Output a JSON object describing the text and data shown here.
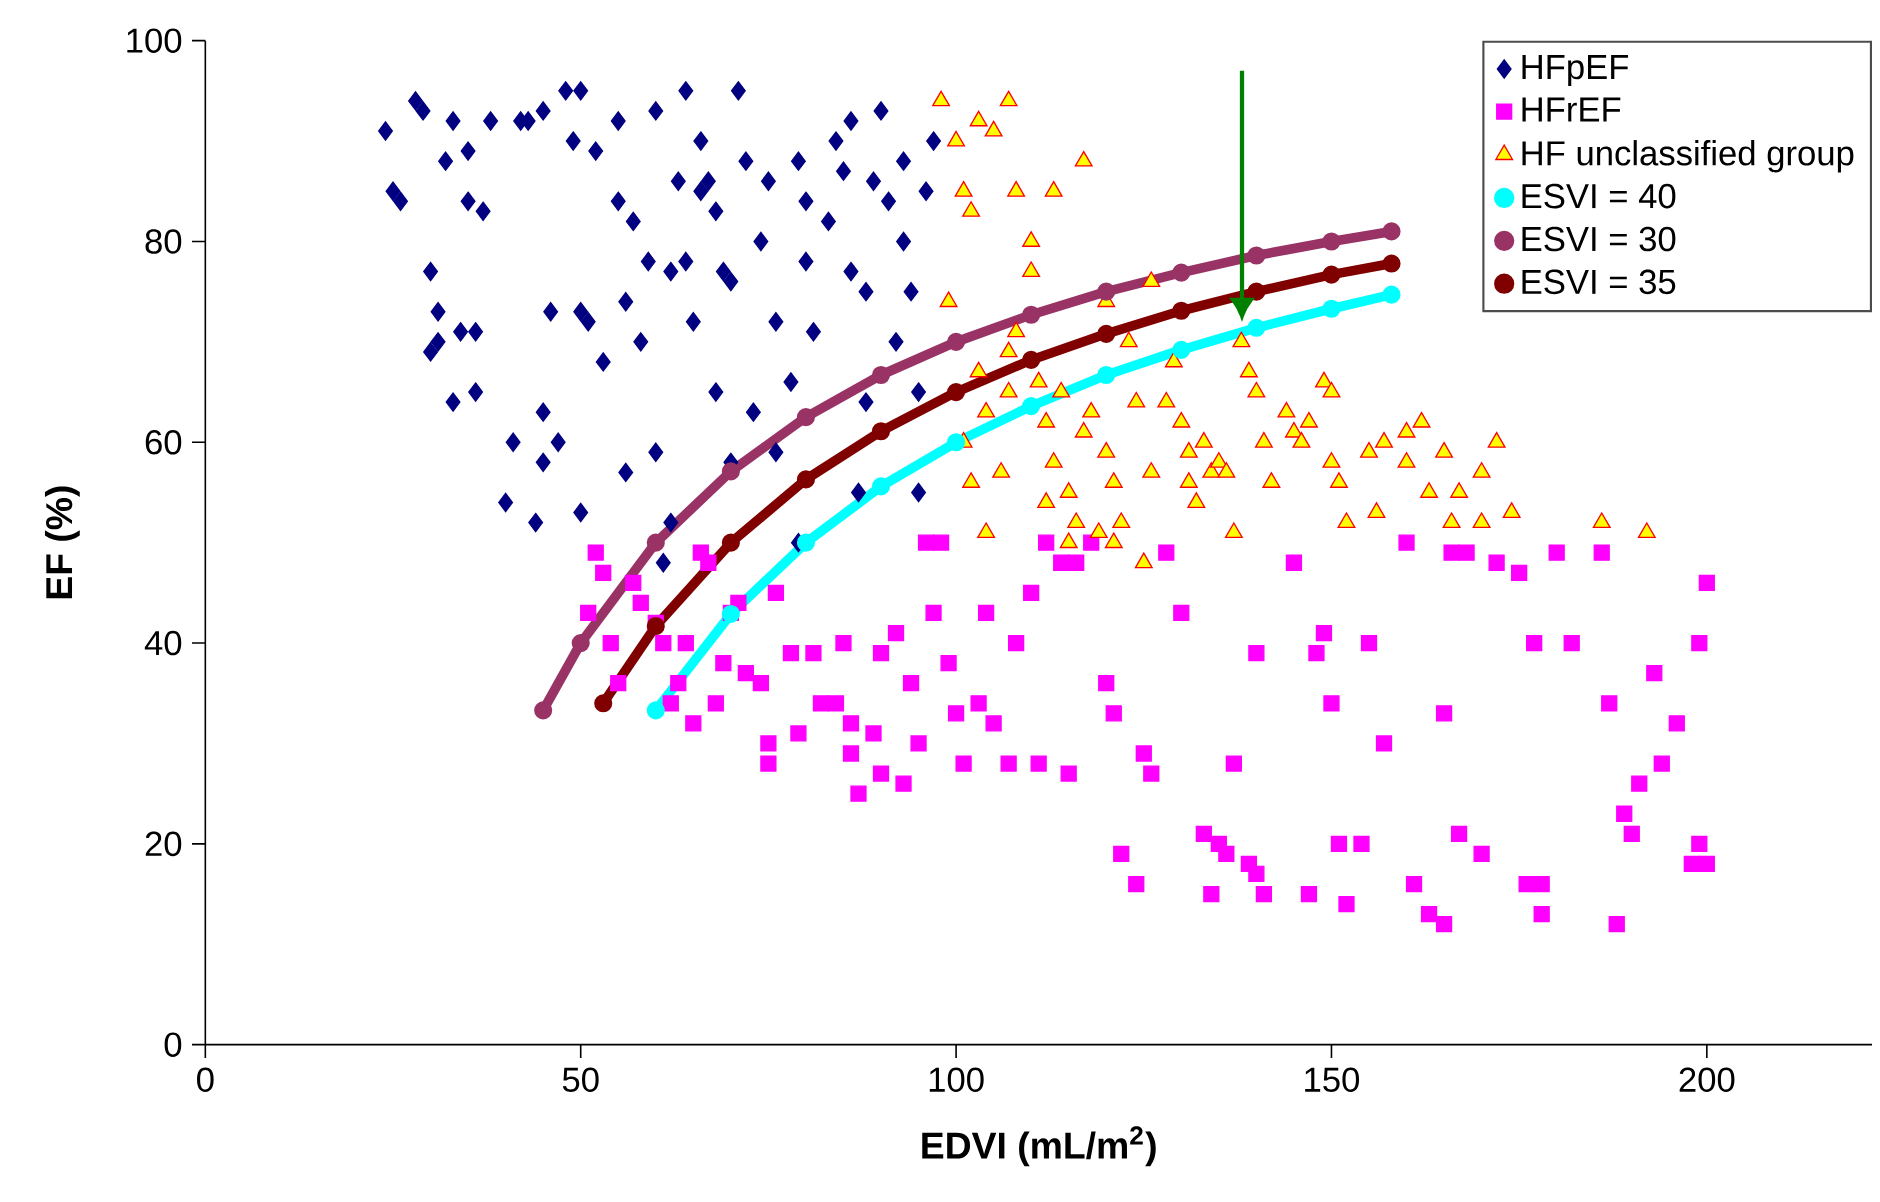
{
  "chart_data": {
    "type": "scatter",
    "xlabel": "EDVI (mL/m$^{2}$)",
    "ylabel": "EF (%)",
    "xlim": [
      0,
      222
    ],
    "xticks": [
      0,
      50,
      100,
      150,
      200
    ],
    "ylim": [
      0,
      100
    ],
    "yticks": [
      0,
      20,
      40,
      60,
      80,
      100
    ],
    "grid": false,
    "legend": "top right",
    "series": [
      {
        "name": "HFpEF",
        "color": "#000080",
        "marker": "diamond",
        "x": [
          24,
          25,
          26,
          28,
          29,
          30,
          31,
          31,
          30,
          32,
          33,
          35,
          35,
          34,
          36,
          36,
          33,
          37,
          38,
          40,
          42,
          43,
          44,
          45,
          46,
          45,
          47,
          48,
          49,
          50,
          50,
          51,
          50,
          52,
          53,
          55,
          55,
          56,
          57,
          58,
          59,
          60,
          60,
          61,
          62,
          63,
          64,
          64,
          65,
          66,
          66,
          67,
          68,
          68,
          69,
          70,
          70,
          71,
          72,
          73,
          74,
          75,
          76,
          76,
          78,
          79,
          80,
          80,
          81,
          83,
          84,
          85,
          86,
          86,
          87,
          88,
          89,
          90,
          91,
          92,
          93,
          93,
          94,
          95,
          96,
          97,
          95,
          88,
          79,
          62,
          56,
          45,
          41
        ],
        "values": [
          91,
          85,
          84,
          94,
          93,
          77,
          73,
          70,
          69,
          88,
          92,
          89,
          84,
          71,
          71,
          65,
          64,
          83,
          92,
          54,
          92,
          92,
          52,
          63,
          73,
          93,
          60,
          95,
          90,
          95,
          73,
          72,
          53,
          89,
          68,
          92,
          84,
          57,
          82,
          70,
          78,
          93,
          59,
          48,
          52,
          86,
          95,
          78,
          72,
          90,
          85,
          86,
          83,
          65,
          77,
          76,
          58,
          95,
          88,
          63,
          80,
          86,
          72,
          59,
          66,
          88,
          84,
          78,
          71,
          82,
          90,
          87,
          92,
          77,
          55,
          64,
          86,
          93,
          84,
          70,
          80,
          88,
          75,
          65,
          85,
          90,
          55,
          75,
          50,
          77,
          74,
          58,
          60
        ]
      },
      {
        "name": "HFrEF",
        "color": "#ff00ff",
        "marker": "square",
        "x": [
          52,
          53,
          51,
          54,
          55,
          57,
          58,
          60,
          61,
          62,
          63,
          64,
          65,
          66,
          67,
          68,
          69,
          70,
          71,
          72,
          74,
          75,
          75,
          76,
          78,
          79,
          81,
          82,
          84,
          85,
          86,
          86,
          87,
          89,
          90,
          90,
          92,
          93,
          94,
          95,
          96,
          97,
          98,
          99,
          100,
          101,
          103,
          104,
          105,
          107,
          108,
          110,
          111,
          112,
          114,
          115,
          116,
          118,
          120,
          121,
          122,
          124,
          125,
          126,
          128,
          130,
          133,
          134,
          135,
          136,
          137,
          139,
          140,
          140,
          141,
          145,
          147,
          148,
          149,
          150,
          151,
          152,
          154,
          155,
          157,
          160,
          161,
          163,
          165,
          165,
          166,
          167,
          168,
          170,
          172,
          175,
          176,
          177,
          178,
          178,
          180,
          182,
          186,
          187,
          188,
          189,
          190,
          191,
          193,
          194,
          196,
          198,
          199,
          199,
          200,
          200
        ],
        "values": [
          49,
          47,
          43,
          40,
          36,
          46,
          44,
          42,
          40,
          34,
          36,
          40,
          32,
          49,
          48,
          34,
          38,
          43,
          44,
          37,
          36,
          28,
          30,
          45,
          39,
          31,
          39,
          34,
          34,
          40,
          32,
          29,
          25,
          31,
          39,
          27,
          41,
          26,
          36,
          30,
          50,
          43,
          50,
          38,
          33,
          28,
          34,
          43,
          32,
          28,
          40,
          45,
          28,
          50,
          48,
          27,
          48,
          50,
          36,
          33,
          19,
          16,
          29,
          27,
          49,
          43,
          21,
          15,
          20,
          19,
          28,
          18,
          17,
          39,
          15,
          48,
          15,
          39,
          41,
          34,
          20,
          14,
          20,
          40,
          30,
          50,
          16,
          13,
          12,
          33,
          49,
          21,
          49,
          19,
          48,
          47,
          16,
          40,
          13,
          16,
          49,
          40,
          49,
          34,
          12,
          23,
          21,
          26,
          37,
          28,
          32,
          18,
          40,
          20,
          18,
          46
        ]
      },
      {
        "name": "HF unclassified group",
        "color": "#ff0000",
        "marker": "triangle",
        "x": [
          98,
          100,
          101,
          102,
          103,
          105,
          107,
          108,
          99,
          101,
          102,
          103,
          104,
          106,
          107,
          107,
          108,
          110,
          111,
          112,
          113,
          114,
          115,
          116,
          117,
          118,
          119,
          120,
          121,
          122,
          124,
          125,
          126,
          128,
          130,
          131,
          132,
          133,
          134,
          135,
          136,
          137,
          138,
          139,
          140,
          141,
          142,
          144,
          145,
          146,
          147,
          149,
          150,
          151,
          152,
          155,
          157,
          160,
          162,
          163,
          165,
          167,
          170,
          172,
          174,
          186,
          192,
          110,
          113,
          117,
          120,
          123,
          126,
          129,
          104,
          112,
          115,
          121,
          131,
          150,
          156,
          160,
          166,
          170
        ],
        "values": [
          94,
          90,
          85,
          83,
          92,
          91,
          94,
          85,
          74,
          60,
          56,
          67,
          63,
          57,
          65,
          69,
          71,
          80,
          66,
          62,
          58,
          65,
          55,
          52,
          61,
          63,
          51,
          59,
          56,
          52,
          64,
          48,
          57,
          64,
          62,
          59,
          54,
          60,
          57,
          58,
          57,
          51,
          70,
          67,
          65,
          60,
          56,
          63,
          61,
          60,
          62,
          66,
          58,
          56,
          52,
          59,
          60,
          61,
          62,
          55,
          59,
          55,
          57,
          60,
          53,
          52,
          51,
          77,
          85,
          88,
          74,
          70,
          76,
          68,
          51,
          54,
          50,
          50,
          56,
          65,
          53,
          58,
          52,
          52
        ]
      },
      {
        "name": "ESVI = 40",
        "color": "#00ffff",
        "type": "line",
        "marker": "circle",
        "x": [
          60,
          70,
          80,
          90,
          100,
          110,
          120,
          130,
          140,
          150,
          158
        ],
        "values": [
          33.3,
          42.9,
          50,
          55.6,
          60,
          63.6,
          66.7,
          69.2,
          71.4,
          73.3,
          74.7
        ]
      },
      {
        "name": "ESVI = 30",
        "color": "#993366",
        "type": "line",
        "marker": "circle",
        "x": [
          45,
          50,
          60,
          70,
          80,
          90,
          100,
          110,
          120,
          130,
          140,
          150,
          158
        ],
        "values": [
          33.3,
          40,
          50,
          57.1,
          62.5,
          66.7,
          70,
          72.7,
          75,
          76.9,
          78.6,
          80,
          81
        ]
      },
      {
        "name": "ESVI = 35",
        "color": "#800000",
        "type": "line",
        "marker": "circle",
        "x": [
          53,
          60,
          70,
          80,
          90,
          100,
          110,
          120,
          130,
          140,
          150,
          158
        ],
        "values": [
          34,
          41.7,
          50,
          56.3,
          61.1,
          65,
          68.2,
          70.8,
          73.1,
          75,
          76.7,
          77.8
        ]
      }
    ]
  }
}
